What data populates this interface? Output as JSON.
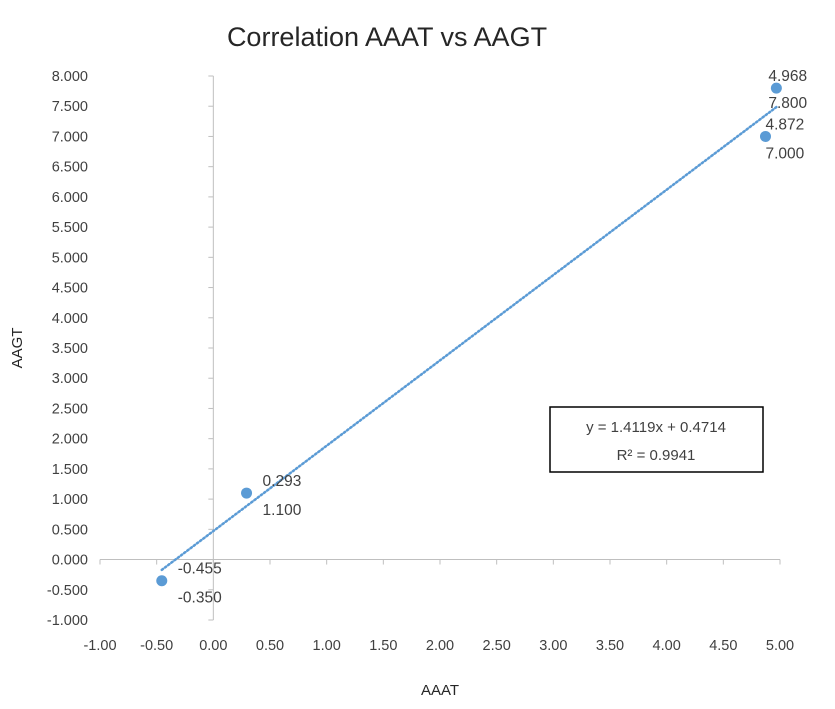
{
  "chart_data": {
    "type": "scatter",
    "title": "Correlation AAAT vs AAGT",
    "xlabel": "AAAT",
    "ylabel": "AAGT",
    "xlim": [
      -1.0,
      5.0
    ],
    "ylim": [
      -1.0,
      8.0
    ],
    "x_ticks": [
      "-1.00",
      "-0.50",
      "0.00",
      "0.50",
      "1.00",
      "1.50",
      "2.00",
      "2.50",
      "3.00",
      "3.50",
      "4.00",
      "4.50",
      "5.00"
    ],
    "y_ticks": [
      "-1.000",
      "-0.500",
      "0.000",
      "0.500",
      "1.000",
      "1.500",
      "2.000",
      "2.500",
      "3.000",
      "3.500",
      "4.000",
      "4.500",
      "5.000",
      "5.500",
      "6.000",
      "6.500",
      "7.000",
      "7.500",
      "8.000"
    ],
    "series": [
      {
        "points": [
          {
            "x": -0.455,
            "y": -0.35,
            "x_label": "-0.455",
            "y_label": "-0.350"
          },
          {
            "x": 0.293,
            "y": 1.1,
            "x_label": "0.293",
            "y_label": "1.100"
          },
          {
            "x": 4.872,
            "y": 7.0,
            "x_label": "4.872",
            "y_label": "7.000"
          },
          {
            "x": 4.968,
            "y": 7.8,
            "x_label": "4.968",
            "y_label": "7.800"
          }
        ],
        "color": "#5b9bd5"
      }
    ],
    "trendline": {
      "type": "linear",
      "slope": 1.4119,
      "intercept": 0.4714,
      "x_range": [
        -0.455,
        4.968
      ],
      "equation": "y = 1.4119x + 0.4714",
      "r_squared": "R² = 0.9941",
      "color": "#5b9bd5",
      "style": "dotted"
    },
    "grid": false,
    "legend": "none"
  }
}
